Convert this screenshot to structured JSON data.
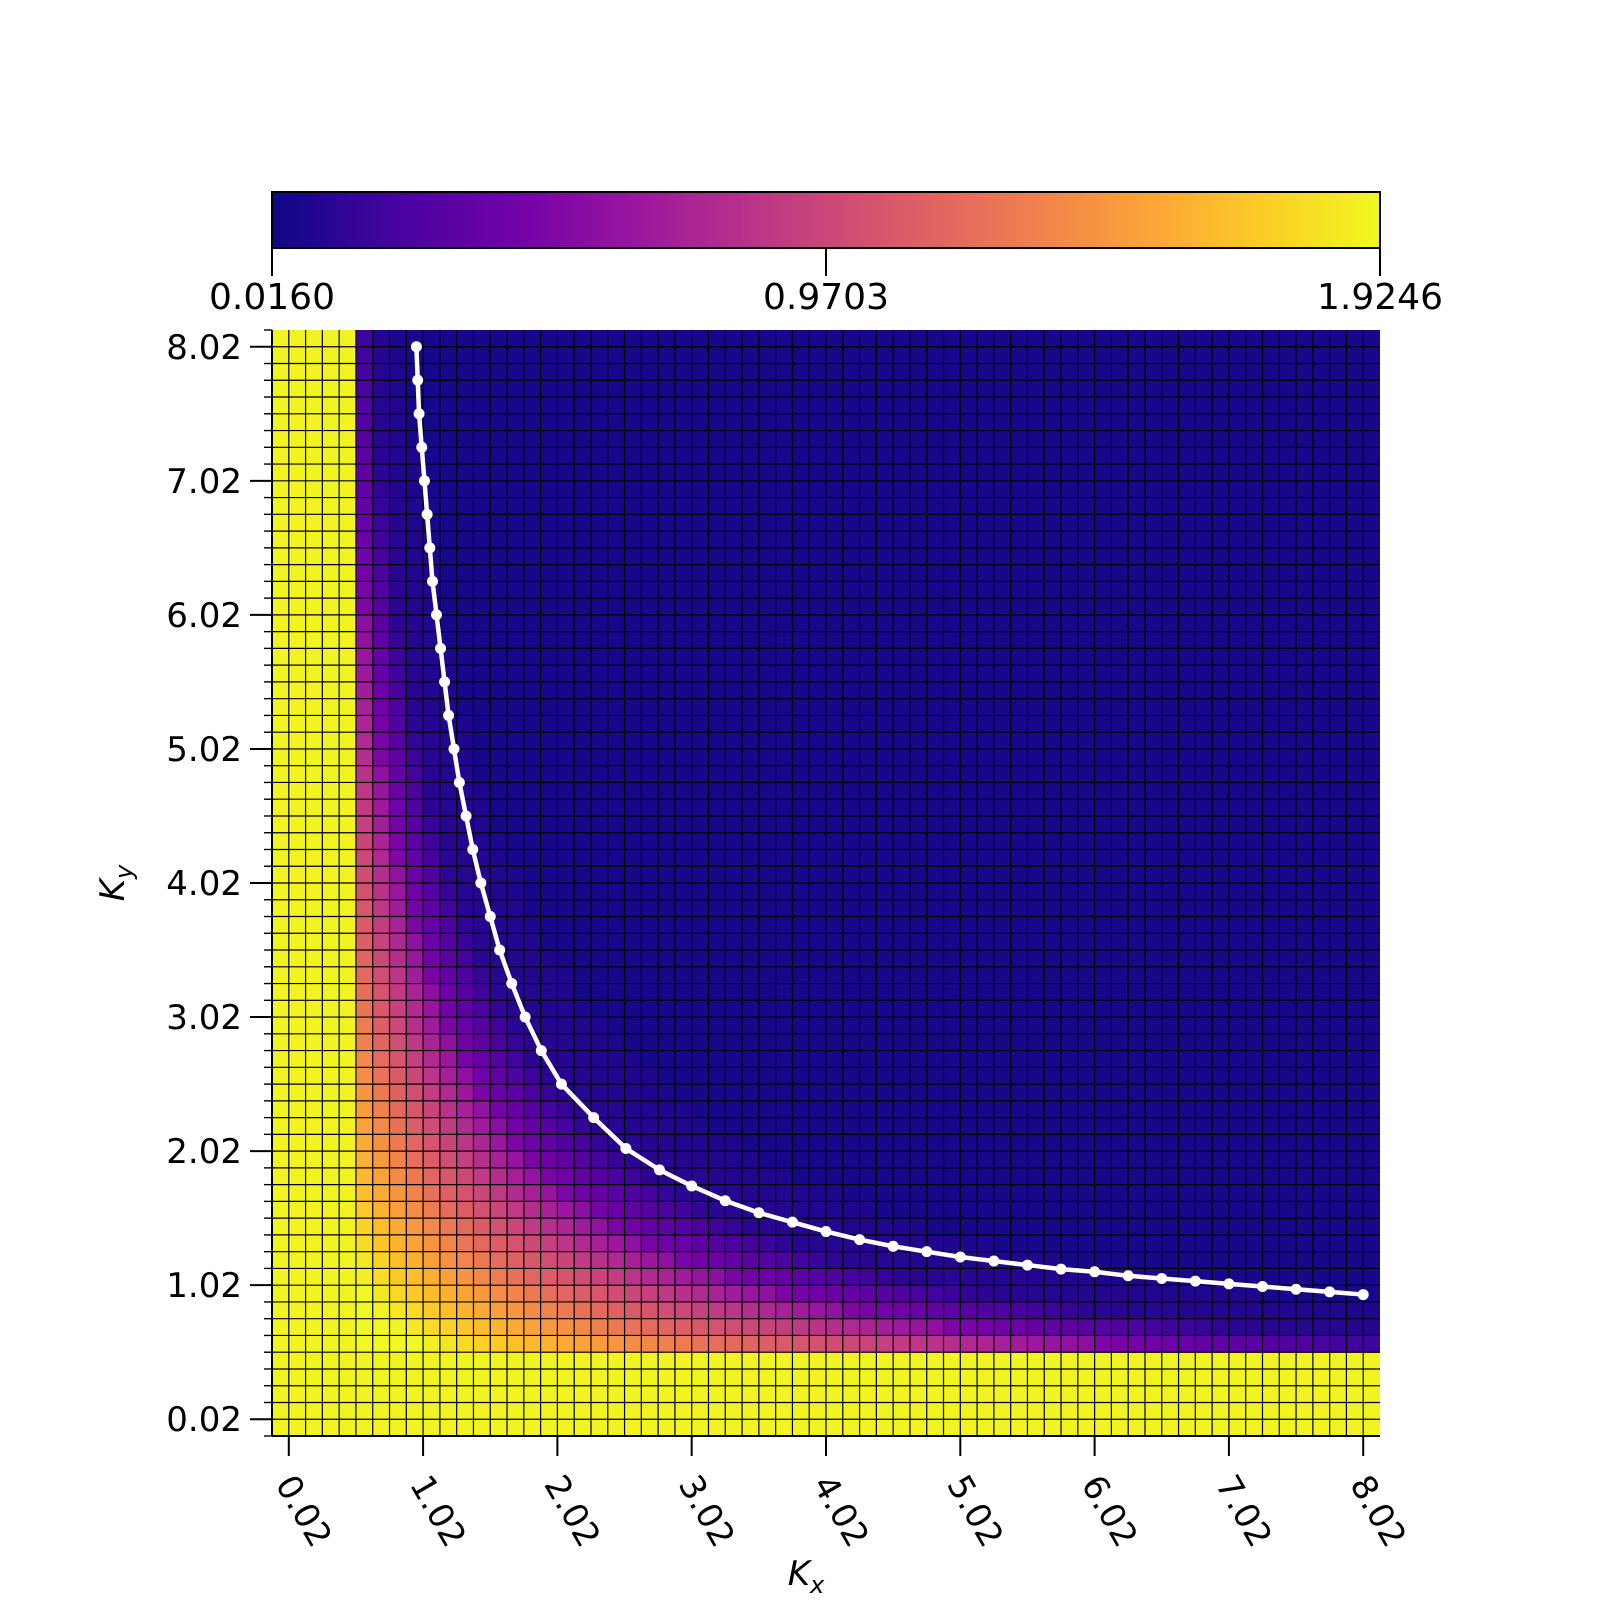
{
  "chart_data": {
    "type": "heatmap",
    "title": "",
    "xlabel": "K",
    "xlabel_sub": "x",
    "ylabel": "K",
    "ylabel_sub": "y",
    "colormap": "plasma",
    "color_stops": [
      "#0d0887",
      "#46039f",
      "#7201a8",
      "#9c179e",
      "#bd3786",
      "#d8576b",
      "#ed7953",
      "#fb9f3a",
      "#fdca26",
      "#f0f921"
    ],
    "colorbar": {
      "orientation": "horizontal",
      "placement": "top",
      "min": 0.016,
      "max": 1.9246,
      "ticks": [
        0.016,
        0.9703,
        1.9246
      ],
      "tick_labels": [
        "0.0160",
        "0.9703",
        "1.9246"
      ]
    },
    "grid": true,
    "xlim": [
      -0.105,
      8.145
    ],
    "ylim": [
      -0.105,
      8.145
    ],
    "grid_step": 0.125,
    "x_ticks": [
      0.02,
      1.02,
      2.02,
      3.02,
      4.02,
      5.02,
      6.02,
      7.02,
      8.02
    ],
    "x_tick_labels": [
      "0.02",
      "1.02",
      "2.02",
      "3.02",
      "4.02",
      "5.02",
      "6.02",
      "7.02",
      "8.02"
    ],
    "y_ticks": [
      0.02,
      1.02,
      2.02,
      3.02,
      4.02,
      5.02,
      6.02,
      7.02,
      8.02
    ],
    "y_tick_labels": [
      "0.02",
      "1.02",
      "2.02",
      "3.02",
      "4.02",
      "5.02",
      "6.02",
      "7.02",
      "8.02"
    ],
    "y_minor_step": 0.125,
    "boundary_curve": {
      "color": "#ffffff",
      "markers": true,
      "points": [
        [
          0.97,
          8.02
        ],
        [
          0.98,
          7.77
        ],
        [
          0.99,
          7.52
        ],
        [
          1.01,
          7.27
        ],
        [
          1.03,
          7.02
        ],
        [
          1.05,
          6.77
        ],
        [
          1.07,
          6.52
        ],
        [
          1.09,
          6.27
        ],
        [
          1.12,
          6.02
        ],
        [
          1.15,
          5.77
        ],
        [
          1.18,
          5.52
        ],
        [
          1.21,
          5.27
        ],
        [
          1.25,
          5.02
        ],
        [
          1.29,
          4.77
        ],
        [
          1.34,
          4.52
        ],
        [
          1.39,
          4.27
        ],
        [
          1.45,
          4.02
        ],
        [
          1.52,
          3.77
        ],
        [
          1.59,
          3.52
        ],
        [
          1.68,
          3.27
        ],
        [
          1.78,
          3.02
        ],
        [
          1.9,
          2.77
        ],
        [
          2.05,
          2.52
        ],
        [
          2.29,
          2.27
        ],
        [
          2.53,
          2.04
        ],
        [
          2.78,
          1.88
        ],
        [
          3.02,
          1.76
        ],
        [
          3.27,
          1.65
        ],
        [
          3.52,
          1.56
        ],
        [
          3.77,
          1.49
        ],
        [
          4.02,
          1.42
        ],
        [
          4.27,
          1.36
        ],
        [
          4.52,
          1.31
        ],
        [
          4.77,
          1.27
        ],
        [
          5.02,
          1.23
        ],
        [
          5.27,
          1.2
        ],
        [
          5.52,
          1.17
        ],
        [
          5.77,
          1.14
        ],
        [
          6.02,
          1.12
        ],
        [
          6.27,
          1.09
        ],
        [
          6.52,
          1.07
        ],
        [
          6.77,
          1.05
        ],
        [
          7.02,
          1.03
        ],
        [
          7.27,
          1.01
        ],
        [
          7.52,
          0.99
        ],
        [
          7.77,
          0.97
        ],
        [
          8.02,
          0.95
        ]
      ]
    }
  }
}
